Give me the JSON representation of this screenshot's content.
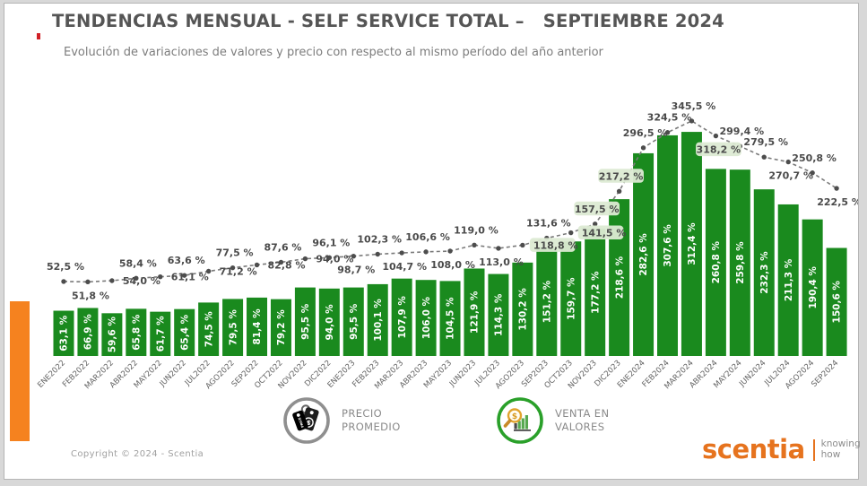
{
  "header": {
    "title": "TENDENCIAS MENSUAL - SELF SERVICE TOTAL –   SEPTIEMBRE 2024",
    "subtitle": "Evolución de variaciones de valores y precio con respecto al mismo período del año anterior"
  },
  "chart_data": {
    "type": "bar",
    "subtype": "bar-with-line-combo",
    "categories": [
      "ENE2022",
      "FEB2022",
      "MAR2022",
      "ABR2022",
      "MAY2022",
      "JUN2022",
      "JUL2022",
      "AGO2022",
      "SEP2022",
      "OCT2022",
      "NOV2022",
      "DIC2022",
      "ENE2023",
      "FEB2023",
      "MAR2023",
      "ABR2023",
      "MAY2023",
      "JUN2023",
      "JUL2023",
      "AGO2023",
      "SEP2023",
      "OCT2023",
      "NOV2023",
      "DIC2023",
      "ENE2024",
      "FEB2024",
      "MAR2024",
      "ABR2024",
      "MAY2024",
      "JUN2024",
      "JUL2024",
      "AGO2024",
      "SEP2024"
    ],
    "series": [
      {
        "name": "VENTA EN VALORES",
        "type": "bar",
        "color": "#1a8a1e",
        "values": [
          63.1,
          66.9,
          59.6,
          65.8,
          61.7,
          65.4,
          74.5,
          79.5,
          81.4,
          79.2,
          95.5,
          94.0,
          95.5,
          100.1,
          107.9,
          106.0,
          104.5,
          121.9,
          114.3,
          130.2,
          151.2,
          159.7,
          177.2,
          218.6,
          282.6,
          307.6,
          312.4,
          260.8,
          259.8,
          232.3,
          211.3,
          190.4,
          150.6
        ],
        "labels": [
          "63,1 %",
          "66,9 %",
          "59,6 %",
          "65,8 %",
          "61,7 %",
          "65,4 %",
          "74,5 %",
          "79,5 %",
          "81,4 %",
          "79,2 %",
          "95,5 %",
          "94,0 %",
          "95,5 %",
          "100,1 %",
          "107,9 %",
          "106,0 %",
          "104,5 %",
          "121,9 %",
          "114,3 %",
          "130,2 %",
          "151,2 %",
          "159,7 %",
          "177,2 %",
          "218,6 %",
          "282,6 %",
          "307,6 %",
          "312,4 %",
          "260,8 %",
          "259,8 %",
          "232,3 %",
          "211,3 %",
          "190,4 %",
          "150,6 %"
        ]
      },
      {
        "name": "PRECIO PROMEDIO",
        "type": "line",
        "color": "#7a7a7a",
        "marker_color": "#4d4d4d",
        "values": [
          52.5,
          51.8,
          54.0,
          58.4,
          61.1,
          63.6,
          71.2,
          77.5,
          82.8,
          87.6,
          94.0,
          96.1,
          98.7,
          102.3,
          104.7,
          106.6,
          108.0,
          119.0,
          113.0,
          118.8,
          131.6,
          141.5,
          157.5,
          217.2,
          296.5,
          324.5,
          345.5,
          318.2,
          299.4,
          279.5,
          270.7,
          250.8,
          222.5
        ],
        "labels": [
          "52,5 %",
          "51,8 %",
          "54,0 %",
          "58,4 %",
          "61,1 %",
          "63,6 %",
          "71,2 %",
          "77,5 %",
          "82,8 %",
          "87,6 %",
          "94,0 %",
          "96,1 %",
          "98,7 %",
          "102,3 %",
          "104,7 %",
          "106,6 %",
          "108,0 %",
          "119,0 %",
          "113,0 %",
          "118,8 %",
          "131,6 %",
          "141,5 %",
          "157,5 %",
          "217,2 %",
          "296,5 %",
          "324,5 %",
          "345,5 %",
          "318,2 %",
          "299,4 %",
          "279,5 %",
          "270,7 %",
          "250,8 %",
          "222,5 %"
        ],
        "label_pos": [
          "above",
          "below",
          "right",
          "above",
          "right",
          "above",
          "right",
          "above",
          "right",
          "above",
          "right",
          "above",
          "below",
          "above",
          "below",
          "above",
          "below",
          "above",
          "below",
          "right",
          "above",
          "right",
          "above",
          "above",
          "above",
          "above",
          "above",
          "below",
          "above",
          "above",
          "below",
          "above",
          "below"
        ],
        "label_chip": [
          false,
          false,
          false,
          false,
          false,
          false,
          false,
          false,
          false,
          false,
          false,
          false,
          false,
          false,
          false,
          false,
          false,
          false,
          false,
          true,
          false,
          true,
          true,
          true,
          false,
          false,
          false,
          true,
          false,
          false,
          false,
          false,
          false
        ]
      }
    ],
    "title": "TENDENCIAS MENSUAL - SELF SERVICE TOTAL – SEPTIEMBRE 2024",
    "xlabel": "",
    "ylabel": "",
    "ylim": [
      0,
      360
    ],
    "grid": false,
    "legend_position": "bottom",
    "chip_color": "#dcead3"
  },
  "legend": [
    {
      "label": "PRECIO PROMEDIO",
      "icon": "price-tags-icon"
    },
    {
      "label": "VENTA EN VALORES",
      "icon": "magnifier-sales-icon"
    }
  ],
  "footer": {
    "copyright": "Copyright © 2024 - Scentia",
    "logo": {
      "name": "scentia",
      "tagline_line1": "knowing",
      "tagline_line2": "how"
    }
  },
  "colors": {
    "bar_green": "#1a8a1e",
    "line_gray": "#7a7a7a",
    "accent_red": "#d12026",
    "accent_orange": "#f5821f",
    "logo_orange": "#e6731e",
    "chip_green": "#dcead3"
  }
}
